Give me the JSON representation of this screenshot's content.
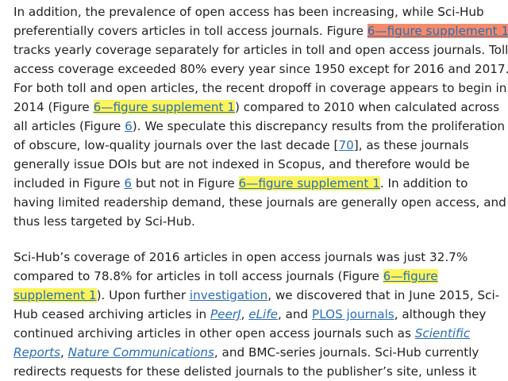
{
  "paragraph1": {
    "l1": "In addition, the prevalence of open access has been increasing, while Sci-Hub",
    "l2_a": "preferentially covers articles in toll access journals. Figure ",
    "l2_link": "6—figure supplement 1",
    "l3": "tracks yearly coverage separately for articles in toll and open access journals. Toll",
    "l4": "access coverage exceeded 80% every year since 1950 except for 2016 and 2017.",
    "l5": "For both toll and open articles, the recent dropoff in coverage appears to begin in",
    "l6_a": "2014 (Figure ",
    "l6_link": "6—figure supplement 1",
    "l6_b": ") compared to 2010 when calculated across",
    "l7_a": "all articles (Figure ",
    "l7_link": "6",
    "l7_b": "). We speculate this discrepancy results from the proliferation",
    "l8_a": "of obscure, low-quality journals over the last decade [",
    "l8_link": "70",
    "l8_b": "], as these journals",
    "l9": "generally issue DOIs but are not indexed in Scopus, and therefore would be",
    "l10_a": "included in Figure ",
    "l10_link1": "6",
    "l10_b": " but not in Figure ",
    "l10_link2": "6—figure supplement 1",
    "l10_c": ". In addition to",
    "l11": "having limited readership demand, these journals are generally open access, and",
    "l12": "thus less targeted by Sci-Hub."
  },
  "paragraph2": {
    "l1": "Sci-Hub’s coverage of 2016 articles in open access journals was just 32.7%",
    "l2_a": "compared to 78.8% for articles in toll access journals (Figure ",
    "l2_link": "6—figure",
    "l3_link": "supplement 1",
    "l3_a": "). Upon further ",
    "l3_link2": "investigation",
    "l3_b": ", we discovered that in June 2015, Sci-",
    "l4_a": "Hub ceased archiving articles in ",
    "l4_link1": "PeerJ",
    "l4_sep1": ", ",
    "l4_link2": "eLife",
    "l4_sep2": ", and ",
    "l4_link3": "PLOS journals",
    "l4_b": ", although they",
    "l5_a": "continued archiving articles in other open access journals such as ",
    "l5_link": "Scientific",
    "l6_link1": "Reports",
    "l6_sep": ", ",
    "l6_link2": "Nature Communications",
    "l6_b": ", and BMC-series journals. Sci-Hub currently",
    "l7": "redirects requests for these delisted journals to the publisher’s site, unless it"
  },
  "colors": {
    "text": "#222222",
    "link": "#2a6db5",
    "highlight_yellow": "#fbf45c",
    "highlight_orange": "#f58a6a"
  }
}
